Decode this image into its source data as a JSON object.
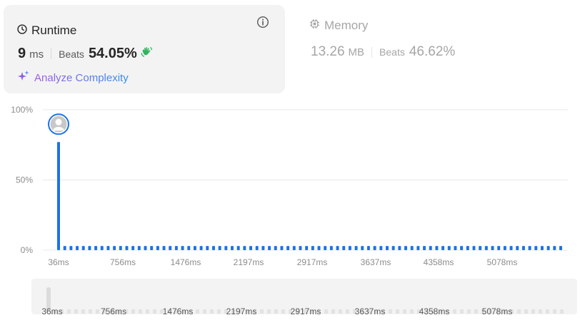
{
  "runtime": {
    "title": "Runtime",
    "value": "9",
    "unit": "ms",
    "beats_label": "Beats",
    "beats_value": "54.05%",
    "analyze_label": "Analyze Complexity"
  },
  "memory": {
    "title": "Memory",
    "value": "13.26",
    "unit": "MB",
    "beats_label": "Beats",
    "beats_value": "46.62%"
  },
  "colors": {
    "bar": "#1a73e8",
    "hand": "#2db55d",
    "grid": "#e8e8e8"
  },
  "chart_data": {
    "type": "bar",
    "y_tick_labels": [
      "100%",
      "50%",
      "0%"
    ],
    "ylim": [
      0,
      100
    ],
    "x_tick_labels": [
      "36ms",
      "756ms",
      "1476ms",
      "2197ms",
      "2917ms",
      "3637ms",
      "4358ms",
      "5078ms"
    ],
    "values": [
      77,
      3,
      3,
      3,
      3,
      3,
      3,
      3,
      3,
      3,
      3,
      3,
      3,
      3,
      3,
      3,
      3,
      3,
      3,
      3,
      3,
      3,
      3,
      3,
      3,
      3,
      3,
      3,
      3,
      3,
      3,
      3,
      3,
      3,
      3,
      3,
      3,
      3,
      3,
      3,
      3,
      3,
      3,
      3,
      3,
      3,
      3,
      3,
      3,
      3,
      3,
      3,
      3,
      3,
      3,
      3,
      3,
      3,
      3,
      3,
      3,
      3,
      3,
      3,
      3,
      3,
      3,
      3,
      3,
      3,
      3,
      3,
      3,
      3,
      3,
      3,
      3,
      3,
      3,
      3,
      3,
      3
    ],
    "highlight_index": 0
  },
  "range_slider": {
    "labels": [
      "36ms",
      "756ms",
      "1476ms",
      "2197ms",
      "2917ms",
      "3637ms",
      "4358ms",
      "5078ms"
    ]
  }
}
